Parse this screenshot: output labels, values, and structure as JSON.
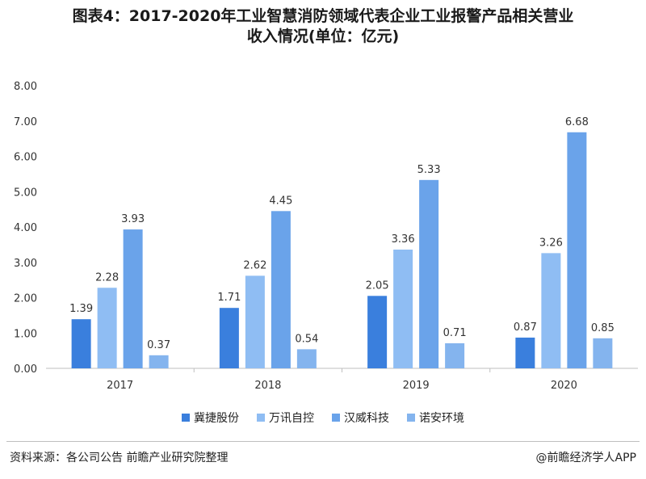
{
  "title": {
    "line1": "图表4：2017-2020年工业智慧消防领域代表企业工业报警产品相关营业",
    "line2": "收入情况(单位：亿元)"
  },
  "footer": {
    "source": "资料来源：各公司公告 前瞻产业研究院整理",
    "brand": "@前瞻经济学人APP"
  },
  "chart_data": {
    "type": "bar",
    "categories": [
      "2017",
      "2018",
      "2019",
      "2020"
    ],
    "ylim": [
      0,
      8
    ],
    "yticks": [
      "0.00",
      "1.00",
      "2.00",
      "3.00",
      "4.00",
      "5.00",
      "6.00",
      "7.00",
      "8.00"
    ],
    "grid": false,
    "legend_position": "bottom",
    "series": [
      {
        "name": "冀捷股份",
        "color": "#3a7fdd",
        "values": [
          1.39,
          1.71,
          2.05,
          0.87
        ]
      },
      {
        "name": "万讯自控",
        "color": "#8fbdf3",
        "values": [
          2.28,
          2.62,
          3.36,
          3.26
        ]
      },
      {
        "name": "汉威科技",
        "color": "#6aa3ea",
        "values": [
          3.93,
          4.45,
          5.33,
          6.68
        ]
      },
      {
        "name": "诺安环境",
        "color": "#84b4ee",
        "values": [
          0.37,
          0.54,
          0.71,
          0.85
        ]
      }
    ]
  }
}
